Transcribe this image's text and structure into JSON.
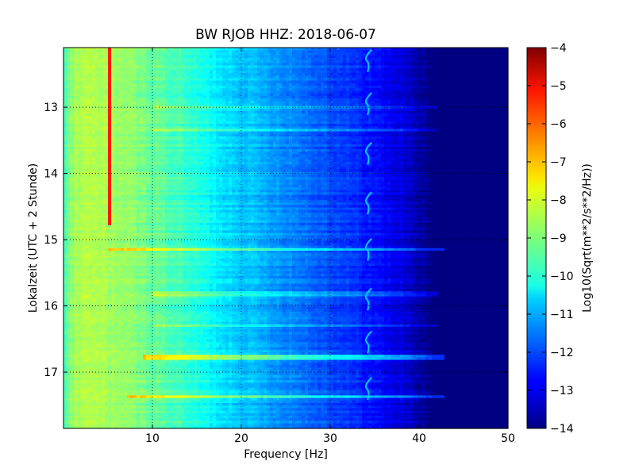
{
  "chart_data": {
    "type": "heatmap",
    "title": "BW RJOB HHZ: 2018-06-07",
    "xlabel": "Frequency [Hz]",
    "ylabel": "Lokalzeit (UTC + 2 Stunde)",
    "colorbar_label": "Log10(Sqrt(m**2/s**2/Hz))",
    "xlim": [
      0,
      50
    ],
    "ylim": [
      12.1,
      17.85
    ],
    "y_inverted": true,
    "x_ticks": [
      10,
      20,
      30,
      40,
      50
    ],
    "y_ticks": [
      13,
      14,
      15,
      16,
      17
    ],
    "clim": [
      -14,
      -4
    ],
    "colorbar_ticks": [
      -4,
      -5,
      -6,
      -7,
      -8,
      -9,
      -10,
      -11,
      -12,
      -13,
      -14
    ],
    "colormap": "jet",
    "grid": true,
    "baseline_profile": {
      "frequency": [
        0,
        1,
        3,
        6,
        10,
        14,
        18,
        22,
        26,
        30,
        34,
        36,
        38,
        39,
        40,
        41,
        42,
        43,
        50
      ],
      "level": [
        -9.7,
        -8.7,
        -8.5,
        -8.7,
        -9.2,
        -9.8,
        -10.5,
        -11.0,
        -11.5,
        -12.0,
        -12.5,
        -12.8,
        -13.1,
        -13.3,
        -13.6,
        -13.9,
        -14.0,
        -14.0,
        -14.0
      ]
    },
    "features": [
      {
        "type": "vertical_line",
        "frequency": 5.1,
        "time_range": [
          12.1,
          14.8
        ],
        "level": -5.5
      },
      {
        "type": "horizontal_band",
        "time": 15.15,
        "frequency_range": [
          5,
          43
        ],
        "level_offset": 1.6
      },
      {
        "type": "horizontal_band",
        "time": 16.78,
        "frequency_range": [
          9,
          43
        ],
        "level_offset": 1.7
      },
      {
        "type": "horizontal_band",
        "time": 17.37,
        "frequency_range": [
          7,
          43
        ],
        "level_offset": 1.7
      },
      {
        "type": "horizontal_band",
        "time": 13.01,
        "frequency_range": [
          10,
          42
        ],
        "level_offset": 0.9
      },
      {
        "type": "horizontal_band",
        "time": 13.35,
        "frequency_range": [
          10,
          42
        ],
        "level_offset": 0.7
      },
      {
        "type": "horizontal_band",
        "time": 15.82,
        "frequency_range": [
          10,
          42
        ],
        "level_offset": 0.8
      },
      {
        "type": "horizontal_band",
        "time": 16.3,
        "frequency_range": [
          10,
          42
        ],
        "level_offset": 0.8
      },
      {
        "type": "tone_curve",
        "frequency_center": 34.3,
        "times": [
          12.3,
          12.95,
          13.7,
          14.45,
          15.15,
          15.9,
          16.55,
          17.25
        ],
        "level": -10.8
      }
    ]
  }
}
